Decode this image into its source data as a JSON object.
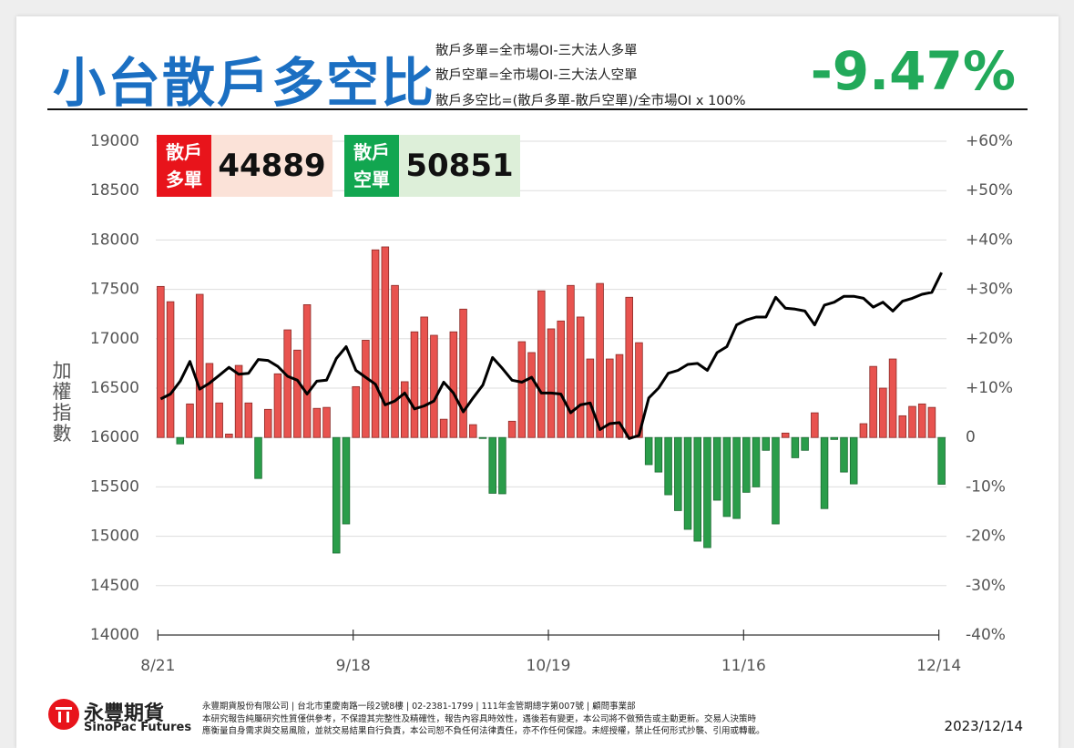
{
  "header": {
    "title": "小台散戶多空比",
    "definitions": [
      "散戶多單=全市場OI-三大法人多單",
      "散戶空單=全市場OI-三大法人空單",
      "散戶多空比=(散戶多單-散戶空單)/全市場OI x 100%"
    ],
    "headline": {
      "value": -9.47,
      "label": "-9.47%"
    }
  },
  "summary": [
    {
      "label": "散戶多單",
      "value": 44889
    },
    {
      "label": "散戶空單",
      "value": 50851
    }
  ],
  "chart_data": {
    "type": "combo",
    "ylabel": "加權指數",
    "categories": [
      "8/21",
      null,
      null,
      null,
      null,
      null,
      null,
      null,
      null,
      null,
      null,
      null,
      null,
      null,
      null,
      null,
      null,
      null,
      null,
      null,
      "9/18",
      null,
      null,
      null,
      null,
      null,
      null,
      null,
      null,
      null,
      null,
      null,
      null,
      null,
      null,
      null,
      null,
      null,
      null,
      null,
      "10/19",
      null,
      null,
      null,
      null,
      null,
      null,
      null,
      null,
      null,
      null,
      null,
      null,
      null,
      null,
      null,
      null,
      null,
      null,
      null,
      "11/16",
      null,
      null,
      null,
      null,
      null,
      null,
      null,
      null,
      null,
      null,
      null,
      null,
      null,
      null,
      null,
      null,
      null,
      null,
      null,
      "12/14"
    ],
    "ylim": [
      14000,
      19000
    ],
    "yticks": [
      14000,
      14500,
      15000,
      15500,
      16000,
      16500,
      17000,
      17500,
      18000,
      18500,
      19000
    ],
    "y2lim": [
      -40,
      60
    ],
    "y2ticks": [
      {
        "value": -40,
        "label": "-40%"
      },
      {
        "value": -30,
        "label": "-30%"
      },
      {
        "value": -20,
        "label": "-20%"
      },
      {
        "value": -10,
        "label": "-10%"
      },
      0,
      {
        "value": 10,
        "label": "+10%"
      },
      {
        "value": 20,
        "label": "+20%"
      },
      {
        "value": 30,
        "label": "+30%"
      },
      {
        "value": 40,
        "label": "+40%"
      },
      {
        "value": 50,
        "label": "+50%"
      },
      {
        "value": 60,
        "label": "+60%"
      }
    ],
    "grid": true,
    "series": [
      {
        "type": "bar",
        "axis": "y2",
        "color": "#e8534f",
        "negative_color": "#2a9d4a",
        "values": [
          30.6,
          27.5,
          -1.3,
          6.8,
          29,
          15,
          7,
          0.7,
          14.6,
          7,
          -8.3,
          5.7,
          12.9,
          21.8,
          17.7,
          26.9,
          5.9,
          6.1,
          -23.4,
          -17.5,
          10.3,
          19.7,
          38,
          38.6,
          30.8,
          11.3,
          21.4,
          24.4,
          20.7,
          3.7,
          21.4,
          26,
          2.6,
          -0.2,
          -11.3,
          -11.4,
          3.3,
          19.4,
          17.2,
          29.7,
          22,
          23.6,
          30.8,
          24.4,
          15.9,
          31.2,
          15.9,
          16.8,
          28.4,
          19.2,
          -5.5,
          -7,
          -11.6,
          -14.8,
          -18.6,
          -21,
          -22.3,
          -12.7,
          -16,
          -16.4,
          -11.1,
          -10,
          -2.6,
          -17.5,
          0.9,
          -4.1,
          -2.6,
          5,
          -14.4,
          -0.4,
          -7,
          -9.4,
          2.8,
          14.4,
          10,
          15.9,
          4.4,
          6.3,
          6.8,
          6.1,
          -9.47
        ]
      },
      {
        "type": "line",
        "color": "#000000",
        "values": [
          16390,
          16440,
          16570,
          16770,
          16490,
          16550,
          16630,
          16710,
          16640,
          16650,
          16790,
          16780,
          16720,
          16620,
          16580,
          16440,
          16570,
          16580,
          16800,
          16920,
          16680,
          16610,
          16540,
          16330,
          16370,
          16450,
          16290,
          16320,
          16370,
          16560,
          16450,
          16260,
          16400,
          16530,
          16810,
          16700,
          16580,
          16560,
          16610,
          16450,
          16450,
          16440,
          16250,
          16330,
          16350,
          16080,
          16140,
          16150,
          15990,
          16020,
          16400,
          16500,
          16650,
          16680,
          16740,
          16750,
          16680,
          16860,
          16920,
          17140,
          17190,
          17220,
          17220,
          17420,
          17310,
          17300,
          17280,
          17140,
          17340,
          17370,
          17430,
          17430,
          17410,
          17320,
          17370,
          17280,
          17380,
          17410,
          17450,
          17470,
          17670
        ]
      }
    ]
  },
  "footer": {
    "logo_cn": "永豐期貨",
    "logo_en": "SinoPac Futures",
    "company": "永豐期貨股份有限公司 | 台北市重慶南路一段2號8樓 | 02-2381-1799 | 111年金管期總字第007號 | 顧問事業部",
    "disclaimer": [
      "本研究報告純屬研究性質僅供參考，不保證其完整性及精確性，報告內容具時效性，遇後若有變更，本公司將不做預告或主動更新。交易人決策時",
      "應衡量自身需求與交易風險，並就交易結果自行負責，本公司恕不負任何法律責任，亦不作任何保證。未經授權，禁止任何形式抄襲、引用或轉載。"
    ],
    "date": "2023/12/14"
  }
}
